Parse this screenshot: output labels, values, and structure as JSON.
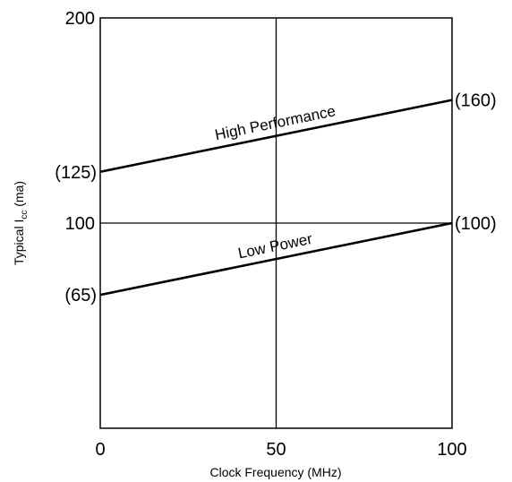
{
  "chart_data": {
    "type": "line",
    "xlabel": "Clock Frequency (MHz)",
    "ylabel": {
      "main": "Typical I",
      "subscript": "cc",
      "suffix": " (ma)"
    },
    "xlim": [
      0,
      100
    ],
    "ylim": [
      0,
      200
    ],
    "grid": true,
    "x_ticks": [
      {
        "value": 0,
        "label": "0"
      },
      {
        "value": 50,
        "label": "50"
      },
      {
        "value": 100,
        "label": "100"
      }
    ],
    "y_ticks": [
      {
        "value": 200,
        "label": "200"
      },
      {
        "value": 100,
        "label": "100"
      }
    ],
    "series": [
      {
        "name": "High Performance",
        "x": [
          0,
          100
        ],
        "y": [
          125,
          160
        ],
        "start_label": "(125)",
        "end_label": "(160)"
      },
      {
        "name": "Low Power",
        "x": [
          0,
          100
        ],
        "y": [
          65,
          100
        ],
        "start_label": "(65)",
        "end_label": "(100)"
      }
    ]
  }
}
